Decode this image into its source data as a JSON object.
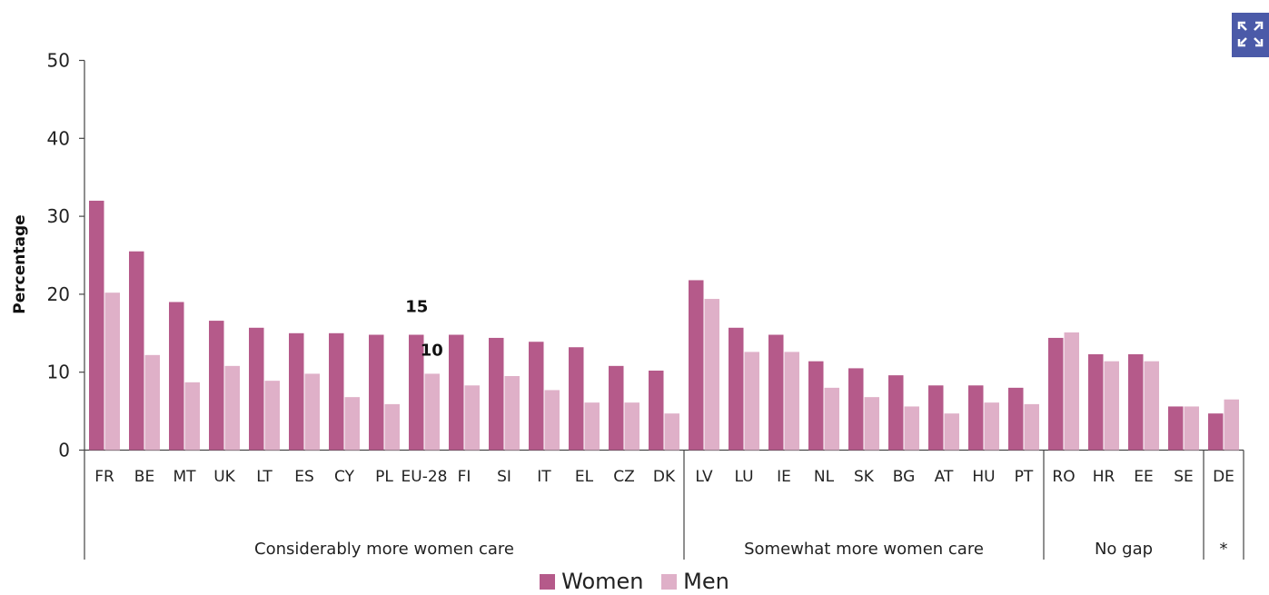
{
  "chart_data": {
    "type": "bar",
    "ylabel": "Percentage",
    "ylim": [
      0,
      50
    ],
    "yticks": [
      0,
      10,
      20,
      30,
      40,
      50
    ],
    "categories": [
      "FR",
      "BE",
      "MT",
      "UK",
      "LT",
      "ES",
      "CY",
      "PL",
      "EU-28",
      "FI",
      "SI",
      "IT",
      "EL",
      "CZ",
      "DK",
      "LV",
      "LU",
      "IE",
      "NL",
      "SK",
      "BG",
      "AT",
      "HU",
      "PT",
      "RO",
      "HR",
      "EE",
      "SE",
      "DE"
    ],
    "series": [
      {
        "name": "Women",
        "color": "#b55a8a",
        "values": [
          32,
          25.5,
          19,
          16.6,
          15.7,
          15,
          15,
          14.8,
          14.8,
          14.8,
          14.4,
          13.9,
          13.2,
          10.8,
          10.2,
          21.8,
          15.7,
          14.8,
          11.4,
          10.5,
          9.6,
          8.3,
          8.3,
          8,
          14.4,
          12.3,
          12.3,
          5.6,
          4.7
        ]
      },
      {
        "name": "Men",
        "color": "#dfb0c8",
        "values": [
          20.2,
          12.2,
          8.7,
          10.8,
          8.9,
          9.8,
          6.8,
          5.9,
          9.8,
          8.3,
          9.5,
          7.7,
          6.1,
          6.1,
          4.7,
          19.4,
          12.6,
          12.6,
          8,
          6.8,
          5.6,
          4.7,
          6.1,
          5.9,
          15.1,
          11.4,
          11.4,
          5.6,
          6.5
        ]
      }
    ],
    "groups": [
      {
        "label": "Considerably more women care",
        "count": 15
      },
      {
        "label": "Somewhat more women care",
        "count": 9
      },
      {
        "label": "No gap",
        "count": 4
      },
      {
        "label": "*",
        "count": 1
      }
    ],
    "annotations": [
      {
        "text": "15",
        "category": "EU-28",
        "series": "Women",
        "value": 15
      },
      {
        "text": "10",
        "category": "EU-28",
        "series": "Men",
        "value": 10
      }
    ],
    "grid": false,
    "legend_position": "bottom-center"
  },
  "legend": {
    "women_label": "Women",
    "men_label": "Men",
    "women_color": "#b55a8a",
    "men_color": "#dfb0c8"
  },
  "toolbar": {
    "expand_icon": "expand-icon",
    "expand_color": "#4b5aa8"
  }
}
